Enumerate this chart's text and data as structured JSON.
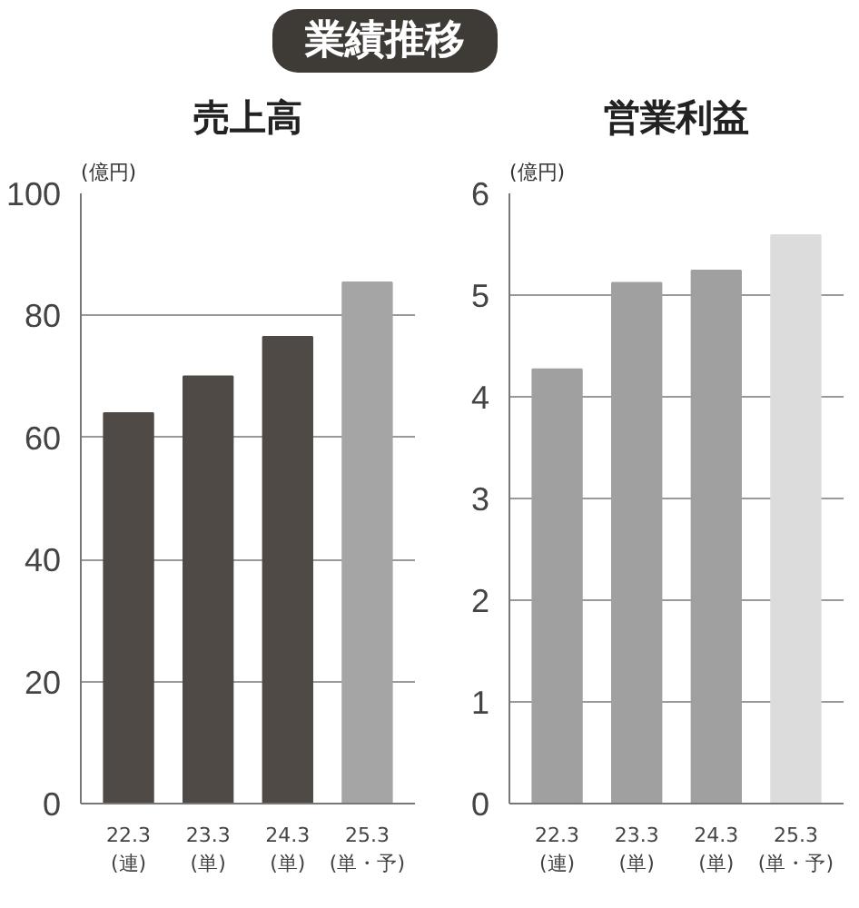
{
  "chart_data": [
    {
      "type": "bar",
      "title": "売上高",
      "ylabel": "(億円)",
      "annotations": [
        "業績推移"
      ],
      "categories": [
        "22.3\n(連)",
        "23.3\n(単)",
        "24.3\n(単)",
        "25.3\n(単・予)"
      ],
      "values": [
        64,
        70,
        76.5,
        85.4
      ],
      "colors": [
        "#4f4a45",
        "#4f4a45",
        "#4f4a45",
        "#a5a5a5"
      ],
      "ylim": [
        0,
        100
      ],
      "yticks": [
        0,
        20,
        40,
        60,
        80,
        100
      ],
      "grid": "y"
    },
    {
      "type": "bar",
      "title": "営業利益",
      "ylabel": "(億円)",
      "categories": [
        "22.3\n(連)",
        "23.3\n(単)",
        "24.3\n(単)",
        "25.3\n(単・予)"
      ],
      "values": [
        4.27,
        5.12,
        5.24,
        5.59
      ],
      "colors": [
        "#a0a0a0",
        "#a0a0a0",
        "#a0a0a0",
        "#dcdcdc"
      ],
      "ylim": [
        0,
        6
      ],
      "yticks": [
        0,
        1,
        2,
        3,
        4,
        5,
        6
      ],
      "grid": "y"
    }
  ]
}
